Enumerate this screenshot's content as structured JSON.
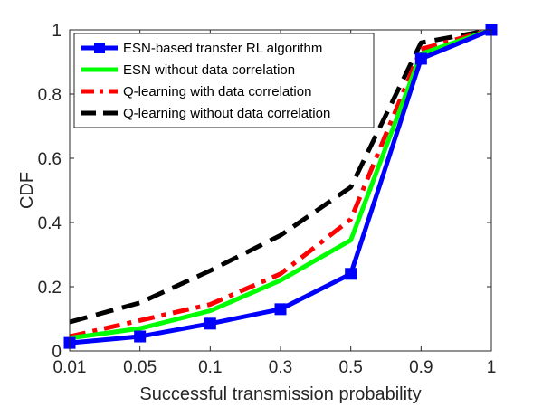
{
  "chart_data": {
    "type": "line",
    "xlabel": "Successful transmission probability",
    "ylabel": "CDF",
    "x_ticks": [
      "0.01",
      "0.05",
      "0.1",
      "0.3",
      "0.5",
      "0.9",
      "1"
    ],
    "y_ticks": [
      "0",
      "0.2",
      "0.4",
      "0.6",
      "0.8",
      "1"
    ],
    "ylim": [
      0,
      1
    ],
    "grid": false,
    "legend_position": "top-left",
    "series": [
      {
        "name": "ESN-based transfer RL algorithm",
        "color": "#0000ff",
        "style": "solid",
        "marker": "square",
        "values": [
          0.025,
          0.045,
          0.085,
          0.13,
          0.24,
          0.91,
          1.0
        ]
      },
      {
        "name": "ESN without data correlation",
        "color": "#00ff00",
        "style": "solid",
        "marker": "none",
        "values": [
          0.04,
          0.07,
          0.125,
          0.22,
          0.345,
          0.925,
          1.0
        ]
      },
      {
        "name": "Q-learning with data correlation",
        "color": "#ff0000",
        "style": "dashdot",
        "marker": "none",
        "values": [
          0.045,
          0.095,
          0.145,
          0.24,
          0.41,
          0.94,
          1.0
        ]
      },
      {
        "name": "Q-learning without data correlation",
        "color": "#000000",
        "style": "dashed",
        "marker": "none",
        "values": [
          0.09,
          0.15,
          0.25,
          0.36,
          0.51,
          0.96,
          1.0
        ]
      }
    ]
  }
}
